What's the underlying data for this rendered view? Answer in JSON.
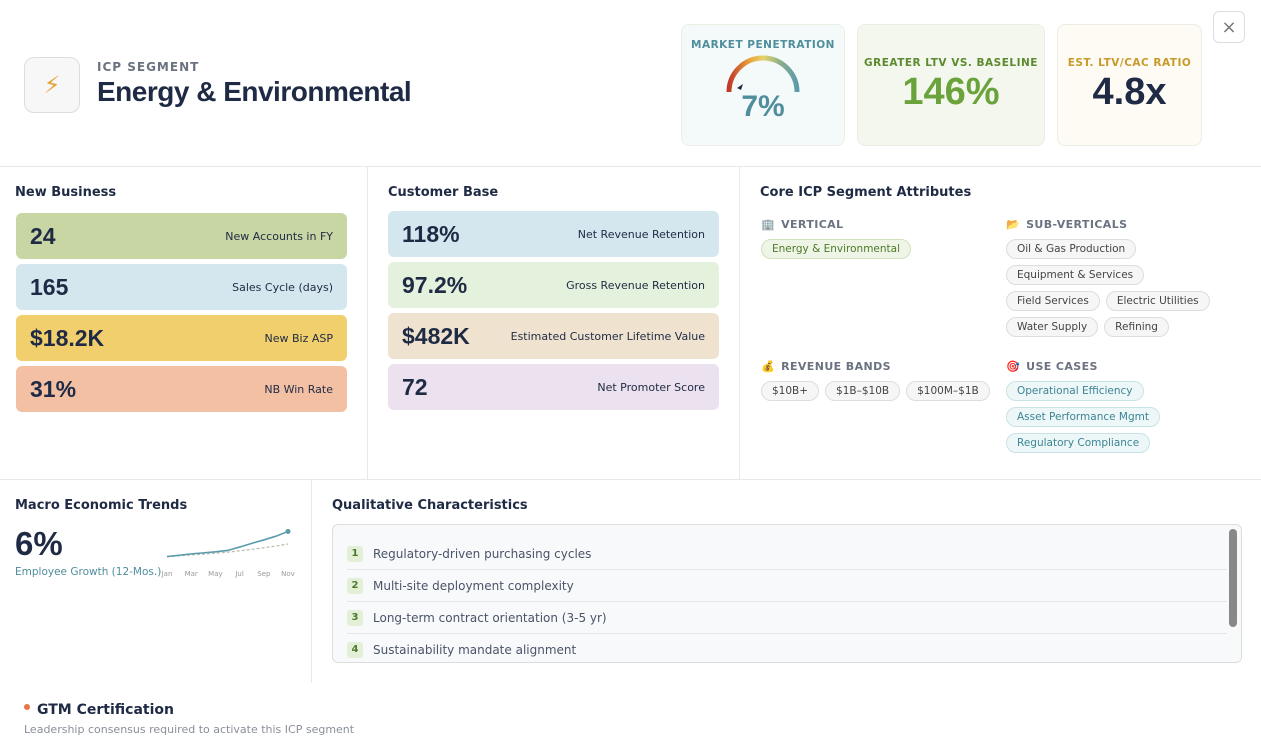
{
  "header": {
    "icon": "⚡",
    "eyebrow": "ICP SEGMENT",
    "title": "Energy & Environmental"
  },
  "kpis": [
    {
      "label": "MARKET PENETRATION",
      "value": "7%"
    },
    {
      "label": "GREATER LTV VS. BASELINE",
      "value": "146%"
    },
    {
      "label": "EST. LTV/CAC RATIO",
      "value": "4.8x"
    }
  ],
  "new_business": {
    "title": "New Business",
    "rows": [
      {
        "value": "24",
        "label": "New Accounts in FY",
        "color": "#c8d6a4"
      },
      {
        "value": "165",
        "label": "Sales Cycle (days)",
        "color": "#d4e6ee"
      },
      {
        "value": "$18.2K",
        "label": "New Biz ASP",
        "color": "#f1cf6c"
      },
      {
        "value": "31%",
        "label": "NB Win Rate",
        "color": "#f4c0a4"
      }
    ]
  },
  "customer_base": {
    "title": "Customer Base",
    "rows": [
      {
        "value": "118%",
        "label": "Net Revenue Retention",
        "color": "#d4e6ee"
      },
      {
        "value": "97.2%",
        "label": "Gross Revenue Retention",
        "color": "#e4f1dc"
      },
      {
        "value": "$482K",
        "label": "Estimated Customer Lifetime Value",
        "color": "#efe3d0"
      },
      {
        "value": "72",
        "label": "Net Promoter Score",
        "color": "#ece1ee"
      }
    ]
  },
  "attributes": {
    "title": "Core ICP Segment Attributes",
    "groups": [
      {
        "icon": "🏢",
        "label": "VERTICAL",
        "tags": [
          "Energy & Environmental"
        ]
      },
      {
        "icon": "📂",
        "label": "SUB-VERTICALS",
        "tags": [
          "Oil & Gas Production",
          "Equipment & Services",
          "Field Services",
          "Electric Utilities",
          "Water Supply",
          "Refining"
        ]
      },
      {
        "icon": "💰",
        "label": "REVENUE BANDS",
        "tags": [
          "$10B+",
          "$1B–$10B",
          "$100M–$1B"
        ]
      },
      {
        "icon": "🎯",
        "label": "USE CASES",
        "tags": [
          "Operational Efficiency",
          "Asset Performance Mgmt",
          "Regulatory Compliance"
        ]
      }
    ]
  },
  "macro": {
    "title": "Macro Economic Trends",
    "value": "6%",
    "caption": "Employee Growth (12-Mos.)"
  },
  "chart_data": {
    "type": "line",
    "categories": [
      "Jan",
      null,
      "Mar",
      null,
      "May",
      null,
      "Jul",
      null,
      "Sep",
      null,
      "Nov"
    ],
    "ylim": [
      0,
      10
    ],
    "series": [
      {
        "color": "#5a9bab",
        "values": [
          1,
          1.4,
          1.8,
          2.1,
          2.4,
          2.8,
          3.8,
          4.9,
          5.9,
          7,
          8.4
        ]
      },
      {
        "color": "#b9b9ad",
        "values": [
          1,
          1.2,
          1.5,
          1.7,
          2,
          2.3,
          2.7,
          3.1,
          3.6,
          4.1,
          4.7
        ]
      }
    ]
  },
  "qualitative": {
    "title": "Qualitative Characteristics",
    "items": [
      {
        "n": 1,
        "text": "Regulatory-driven purchasing cycles"
      },
      {
        "n": 2,
        "text": "Multi-site deployment complexity"
      },
      {
        "n": 3,
        "text": "Long-term contract orientation (3-5 yr)"
      },
      {
        "n": 4,
        "text": "Sustainability mandate alignment"
      }
    ]
  },
  "footer": {
    "title": "GTM Certification",
    "subtitle": "Leadership consensus required to activate this ICP segment"
  }
}
